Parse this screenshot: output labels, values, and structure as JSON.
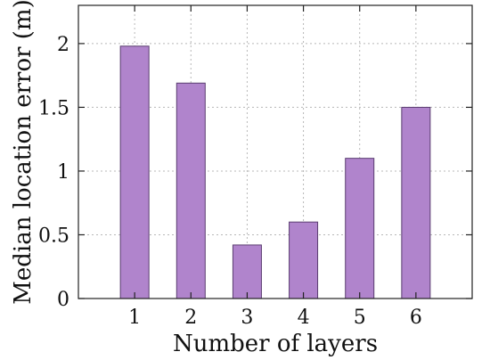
{
  "chart_data": {
    "type": "bar",
    "categories": [
      "1",
      "2",
      "3",
      "4",
      "5",
      "6"
    ],
    "values": [
      1.98,
      1.69,
      0.42,
      0.6,
      1.1,
      1.5
    ],
    "title": "",
    "xlabel": "Number of layers",
    "ylabel": "Median location error (m)",
    "ylim": [
      0,
      2.3
    ],
    "yticks": [
      0,
      0.5,
      1,
      1.5,
      2
    ],
    "ytick_labels": [
      "0",
      "0.5",
      "1",
      "1.5",
      "2"
    ],
    "grid": true,
    "bar_color": "#b084cc",
    "bar_edge_color": "#5a3d70"
  }
}
